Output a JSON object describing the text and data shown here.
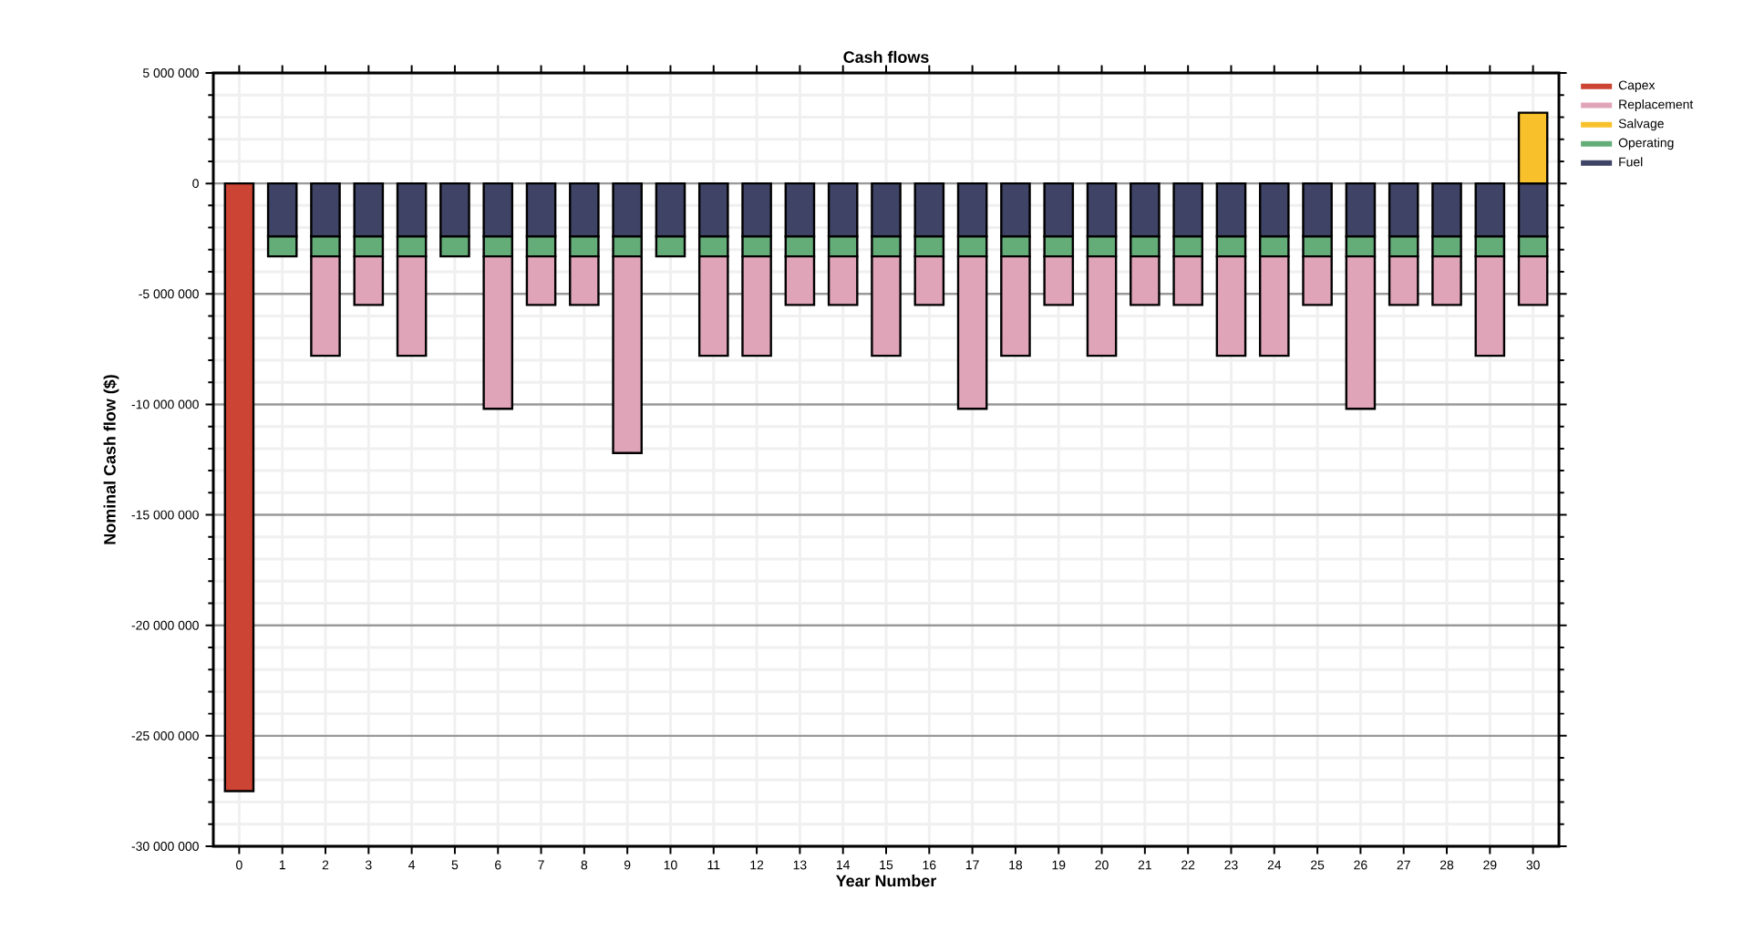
{
  "chart_data": {
    "type": "bar",
    "title": "Cash flows",
    "xlabel": "Year Number",
    "ylabel": "Nominal Cash flow ($)",
    "categories": [
      "0",
      "1",
      "2",
      "3",
      "4",
      "5",
      "6",
      "7",
      "8",
      "9",
      "10",
      "11",
      "12",
      "13",
      "14",
      "15",
      "16",
      "17",
      "18",
      "19",
      "20",
      "21",
      "22",
      "23",
      "24",
      "25",
      "26",
      "27",
      "28",
      "29",
      "30"
    ],
    "stacked": true,
    "series": [
      {
        "name": "Fuel",
        "color": "#3f4466",
        "values": [
          null,
          -2400000,
          -2400000,
          -2400000,
          -2400000,
          -2400000,
          -2400000,
          -2400000,
          -2400000,
          -2400000,
          -2400000,
          -2400000,
          -2400000,
          -2400000,
          -2400000,
          -2400000,
          -2400000,
          -2400000,
          -2400000,
          -2400000,
          -2400000,
          -2400000,
          -2400000,
          -2400000,
          -2400000,
          -2400000,
          -2400000,
          -2400000,
          -2400000,
          -2400000,
          -2400000
        ]
      },
      {
        "name": "Operating",
        "color": "#64ac78",
        "values": [
          null,
          -900000,
          -900000,
          -900000,
          -900000,
          -900000,
          -900000,
          -900000,
          -900000,
          -900000,
          -900000,
          -900000,
          -900000,
          -900000,
          -900000,
          -900000,
          -900000,
          -900000,
          -900000,
          -900000,
          -900000,
          -900000,
          -900000,
          -900000,
          -900000,
          -900000,
          -900000,
          -900000,
          -900000,
          -900000,
          -900000
        ]
      },
      {
        "name": "Salvage",
        "color": "#f8c12c",
        "values": [
          null,
          null,
          null,
          null,
          null,
          null,
          null,
          null,
          null,
          null,
          null,
          null,
          null,
          null,
          null,
          null,
          null,
          null,
          null,
          null,
          null,
          null,
          null,
          null,
          null,
          null,
          null,
          null,
          null,
          null,
          3200000
        ]
      },
      {
        "name": "Replacement",
        "color": "#e0a4b8",
        "values": [
          null,
          null,
          -4500000,
          -2200000,
          -4500000,
          null,
          -6900000,
          -2200000,
          -2200000,
          -8900000,
          null,
          -4500000,
          -4500000,
          -2200000,
          -2200000,
          -4500000,
          -2200000,
          -6900000,
          -4500000,
          -2200000,
          -4500000,
          -2200000,
          -2200000,
          -4500000,
          -4500000,
          -2200000,
          -6900000,
          -2200000,
          -2200000,
          -4500000,
          -2200000
        ]
      },
      {
        "name": "Capex",
        "color": "#cc4433",
        "values": [
          -27500000,
          null,
          null,
          null,
          null,
          null,
          null,
          null,
          null,
          null,
          null,
          null,
          null,
          null,
          null,
          null,
          null,
          null,
          null,
          null,
          null,
          null,
          null,
          null,
          null,
          null,
          null,
          null,
          null,
          null,
          null
        ]
      }
    ],
    "ylim": [
      -30000000,
      5000000
    ],
    "yticks": [
      {
        "value": 5000000,
        "label": "5 000 000"
      },
      0,
      {
        "value": -5000000,
        "label": "-5 000 000"
      },
      {
        "value": -10000000,
        "label": "-10 000 000"
      },
      {
        "value": -15000000,
        "label": "-15 000 000"
      },
      {
        "value": -20000000,
        "label": "-20 000 000"
      },
      {
        "value": -25000000,
        "label": "-25 000 000"
      },
      {
        "value": -30000000,
        "label": "-30 000 000"
      }
    ],
    "grid": true,
    "legend": "right"
  }
}
